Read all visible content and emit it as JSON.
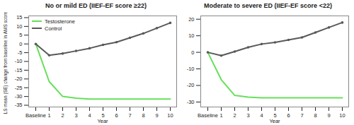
{
  "chart_data": [
    {
      "type": "line",
      "title": "No or mild ED (IIEF-EF score ≥22)",
      "x_label": "Year",
      "y_label": "LS mean (SE) change from baseline in AMS score",
      "categories": [
        "Baseline",
        "1",
        "2",
        "3",
        "4",
        "5",
        "6",
        "7",
        "8",
        "9",
        "10"
      ],
      "series": [
        {
          "name": "Testosterone",
          "color": "#66e05a",
          "values": [
            0,
            -21.5,
            -30,
            -31,
            -31.5,
            -31.5,
            -31.5,
            -31.5,
            -31.5,
            -31.5,
            -31.5
          ]
        },
        {
          "name": "Control",
          "color": "#595959",
          "marker": "circle",
          "values": [
            0,
            -6.5,
            -5.5,
            -4,
            -2.5,
            -0.5,
            1,
            3.5,
            6,
            9,
            12
          ]
        }
      ],
      "ylim": [
        -36,
        16
      ],
      "yticks": [
        -35,
        -30,
        -25,
        -20,
        -15,
        -10,
        -5,
        0,
        5,
        10,
        15
      ],
      "legend": "upper left"
    },
    {
      "type": "line",
      "title": "Moderate to severe ED (IIEF-EF score <22)",
      "x_label": "Year",
      "categories": [
        "Baseline",
        "1",
        "2",
        "3",
        "4",
        "5",
        "6",
        "7",
        "8",
        "9",
        "10"
      ],
      "series": [
        {
          "name": "Testosterone",
          "color": "#66e05a",
          "values": [
            0,
            -16.5,
            -26,
            -27,
            -27.5,
            -27.5,
            -27.5,
            -27.5,
            -27.5,
            -27.5,
            -27.5
          ]
        },
        {
          "name": "Control",
          "color": "#595959",
          "marker": "circle",
          "values": [
            0,
            -2,
            0.5,
            3,
            5,
            6,
            7.5,
            9,
            12,
            15,
            18
          ]
        }
      ],
      "ylim": [
        -33,
        22
      ],
      "yticks": [
        -30,
        -20,
        -10,
        0,
        10,
        20
      ]
    }
  ]
}
